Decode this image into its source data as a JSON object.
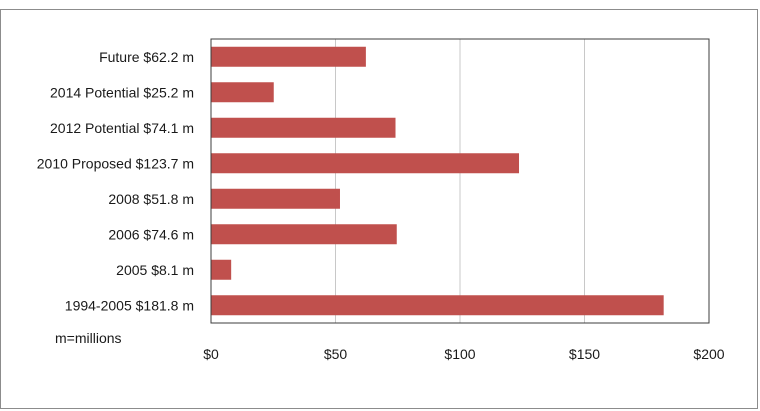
{
  "chart_data": {
    "type": "bar",
    "orientation": "horizontal",
    "categories": [
      "Future $62.2 m",
      "2014 Potential $25.2 m",
      "2012 Potential $74.1 m",
      "2010 Proposed $123.7 m",
      "2008 $51.8 m",
      "2006 $74.6 m",
      "2005 $8.1 m",
      "1994-2005 $181.8 m"
    ],
    "values": [
      62.2,
      25.2,
      74.1,
      123.7,
      51.8,
      74.6,
      8.1,
      181.8
    ],
    "xlim": [
      0,
      200
    ],
    "x_ticks": [
      0,
      50,
      100,
      150,
      200
    ],
    "x_tick_labels": [
      "$0",
      "$50",
      "$100",
      "$150",
      "$200"
    ],
    "annotation": "m=millions",
    "grid": "vertical",
    "bar_color": "#c0504d",
    "gridline_color": "#c8c8c8"
  }
}
